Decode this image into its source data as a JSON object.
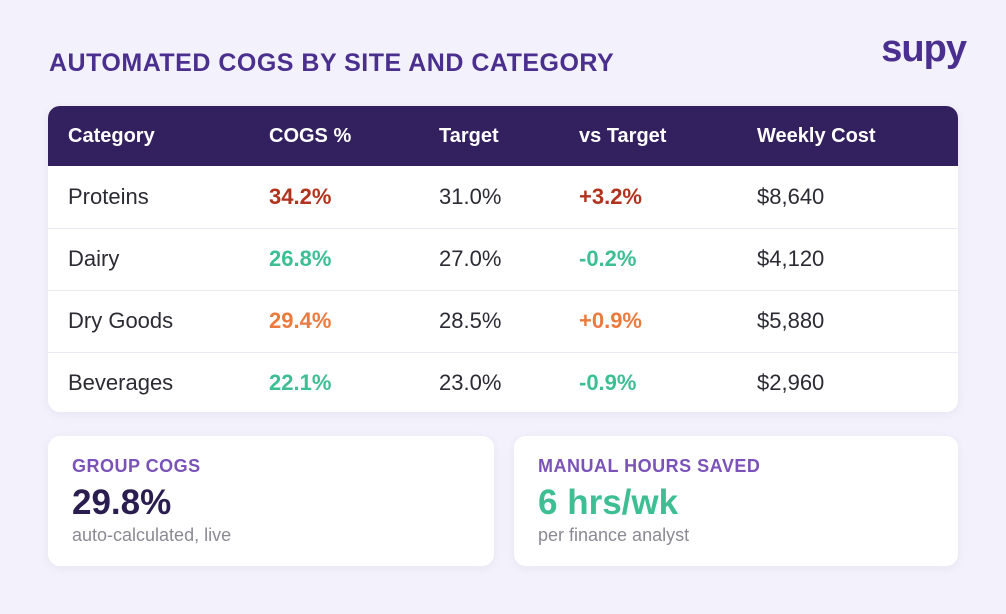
{
  "header": {
    "title": "AUTOMATED COGS BY SITE AND CATEGORY",
    "logo_text": "supy"
  },
  "table": {
    "columns": [
      "Category",
      "COGS %",
      "Target",
      "vs Target",
      "Weekly Cost"
    ],
    "rows": [
      {
        "category": "Proteins",
        "cogs": "34.2%",
        "target": "31.0%",
        "vs_target": "+3.2%",
        "weekly_cost": "$8,640",
        "status": "over"
      },
      {
        "category": "Dairy",
        "cogs": "26.8%",
        "target": "27.0%",
        "vs_target": "-0.2%",
        "weekly_cost": "$4,120",
        "status": "under"
      },
      {
        "category": "Dry Goods",
        "cogs": "29.4%",
        "target": "28.5%",
        "vs_target": "+0.9%",
        "weekly_cost": "$5,880",
        "status": "slightly-over"
      },
      {
        "category": "Beverages",
        "cogs": "22.1%",
        "target": "23.0%",
        "vs_target": "-0.9%",
        "weekly_cost": "$2,960",
        "status": "under"
      }
    ]
  },
  "stats": {
    "group_cogs": {
      "label": "GROUP COGS",
      "value": "29.8%",
      "sub": "auto-calculated, live"
    },
    "hours_saved": {
      "label": "MANUAL HOURS SAVED",
      "value": "6 hrs/wk",
      "sub": "per finance analyst"
    }
  },
  "colors": {
    "brand": "#4b2f8f",
    "header_bg": "#33205e",
    "over": "#b3321d",
    "slightly_over": "#ec7a3d",
    "under": "#3dbe93"
  }
}
